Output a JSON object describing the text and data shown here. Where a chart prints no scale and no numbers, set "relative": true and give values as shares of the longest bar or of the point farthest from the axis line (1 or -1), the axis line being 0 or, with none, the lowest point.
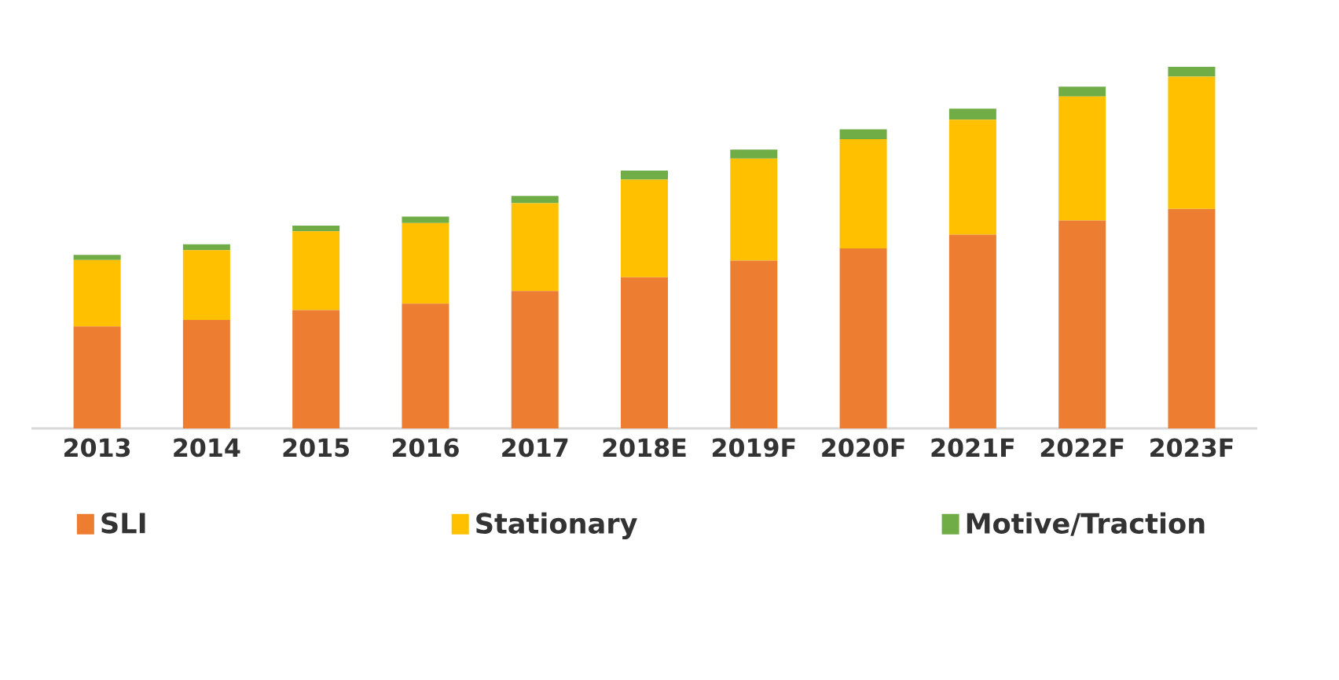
{
  "chart_data": {
    "type": "bar",
    "stacked": true,
    "relative": true,
    "legend": "bottom",
    "categories": [
      "2013",
      "2014",
      "2015",
      "2016",
      "2017",
      "2018E",
      "2019F",
      "2020F",
      "2021F",
      "2022F",
      "2023F"
    ],
    "series": [
      {
        "name": "SLI",
        "color": "#ed7d31",
        "values": [
          0.282,
          0.3,
          0.327,
          0.345,
          0.38,
          0.418,
          0.464,
          0.498,
          0.536,
          0.575,
          0.607
        ]
      },
      {
        "name": "Stationary",
        "color": "#ffc000",
        "values": [
          0.184,
          0.193,
          0.218,
          0.223,
          0.243,
          0.27,
          0.282,
          0.302,
          0.318,
          0.343,
          0.366
        ]
      },
      {
        "name": "Motive/Traction",
        "color": "#70ad47",
        "values": [
          0.014,
          0.016,
          0.016,
          0.018,
          0.02,
          0.025,
          0.025,
          0.027,
          0.03,
          0.027,
          0.027
        ]
      }
    ]
  }
}
